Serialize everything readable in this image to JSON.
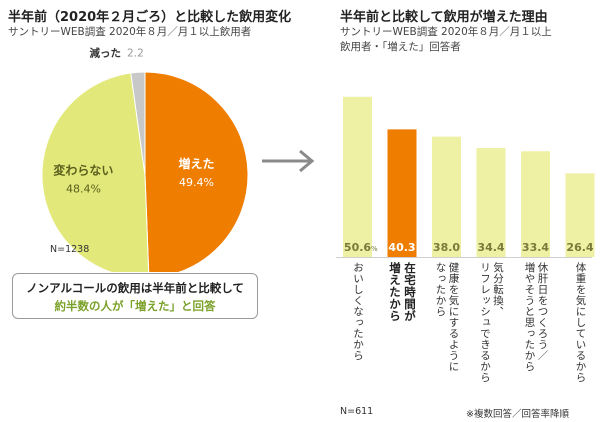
{
  "left": {
    "title": "半年前（2020年２月ごろ）と比較した飲用変化",
    "subtitle": "サントリーWEB調査 2020年８月／月１以上飲用者",
    "n": "N=1238",
    "callout_line1": "ノンアルコールの飲用は半年前と比較して",
    "callout_line2": "約半数の人が「増えた」と回答"
  },
  "right": {
    "title": "半年前と比較して飲用が増えた理由",
    "subtitle_line1": "サントリーWEB調査 2020年８月／月１以上",
    "subtitle_line2": "飲用者・「増えた」回答者",
    "n": "N=611",
    "footnote": "※複数回答／回答率降順"
  },
  "chart_data": [
    {
      "type": "pie",
      "labels": [
        "増えた",
        "変わらない",
        "減った"
      ],
      "values": [
        49.4,
        48.4,
        2.2
      ],
      "value_labels": [
        "49.4",
        "48.4",
        "2.2"
      ],
      "unit": "%",
      "colors": [
        "#ee7d00",
        "#e2e879",
        "#c8c8c8"
      ]
    },
    {
      "type": "bar",
      "categories": [
        "おいしくなったから",
        "在宅時間が\n増えたから",
        "健康を気にするように\nなったから",
        "気分転換、\nリフレッシュできるから",
        "休肝日をつくろう／\n増やそうと思ったから",
        "体重を気にしているから"
      ],
      "values": [
        50.6,
        40.3,
        38.0,
        34.4,
        33.4,
        26.4
      ],
      "value_labels": [
        "50.6",
        "40.3",
        "38.0",
        "34.4",
        "33.4",
        "26.4"
      ],
      "unit": "%",
      "highlight_index": 1,
      "colors": {
        "bar": "#eef0a4",
        "highlight": "#ee7d00",
        "label": "#7a7a3a",
        "highlight_label": "#ffffff"
      },
      "ylim": [
        0,
        60
      ]
    }
  ]
}
